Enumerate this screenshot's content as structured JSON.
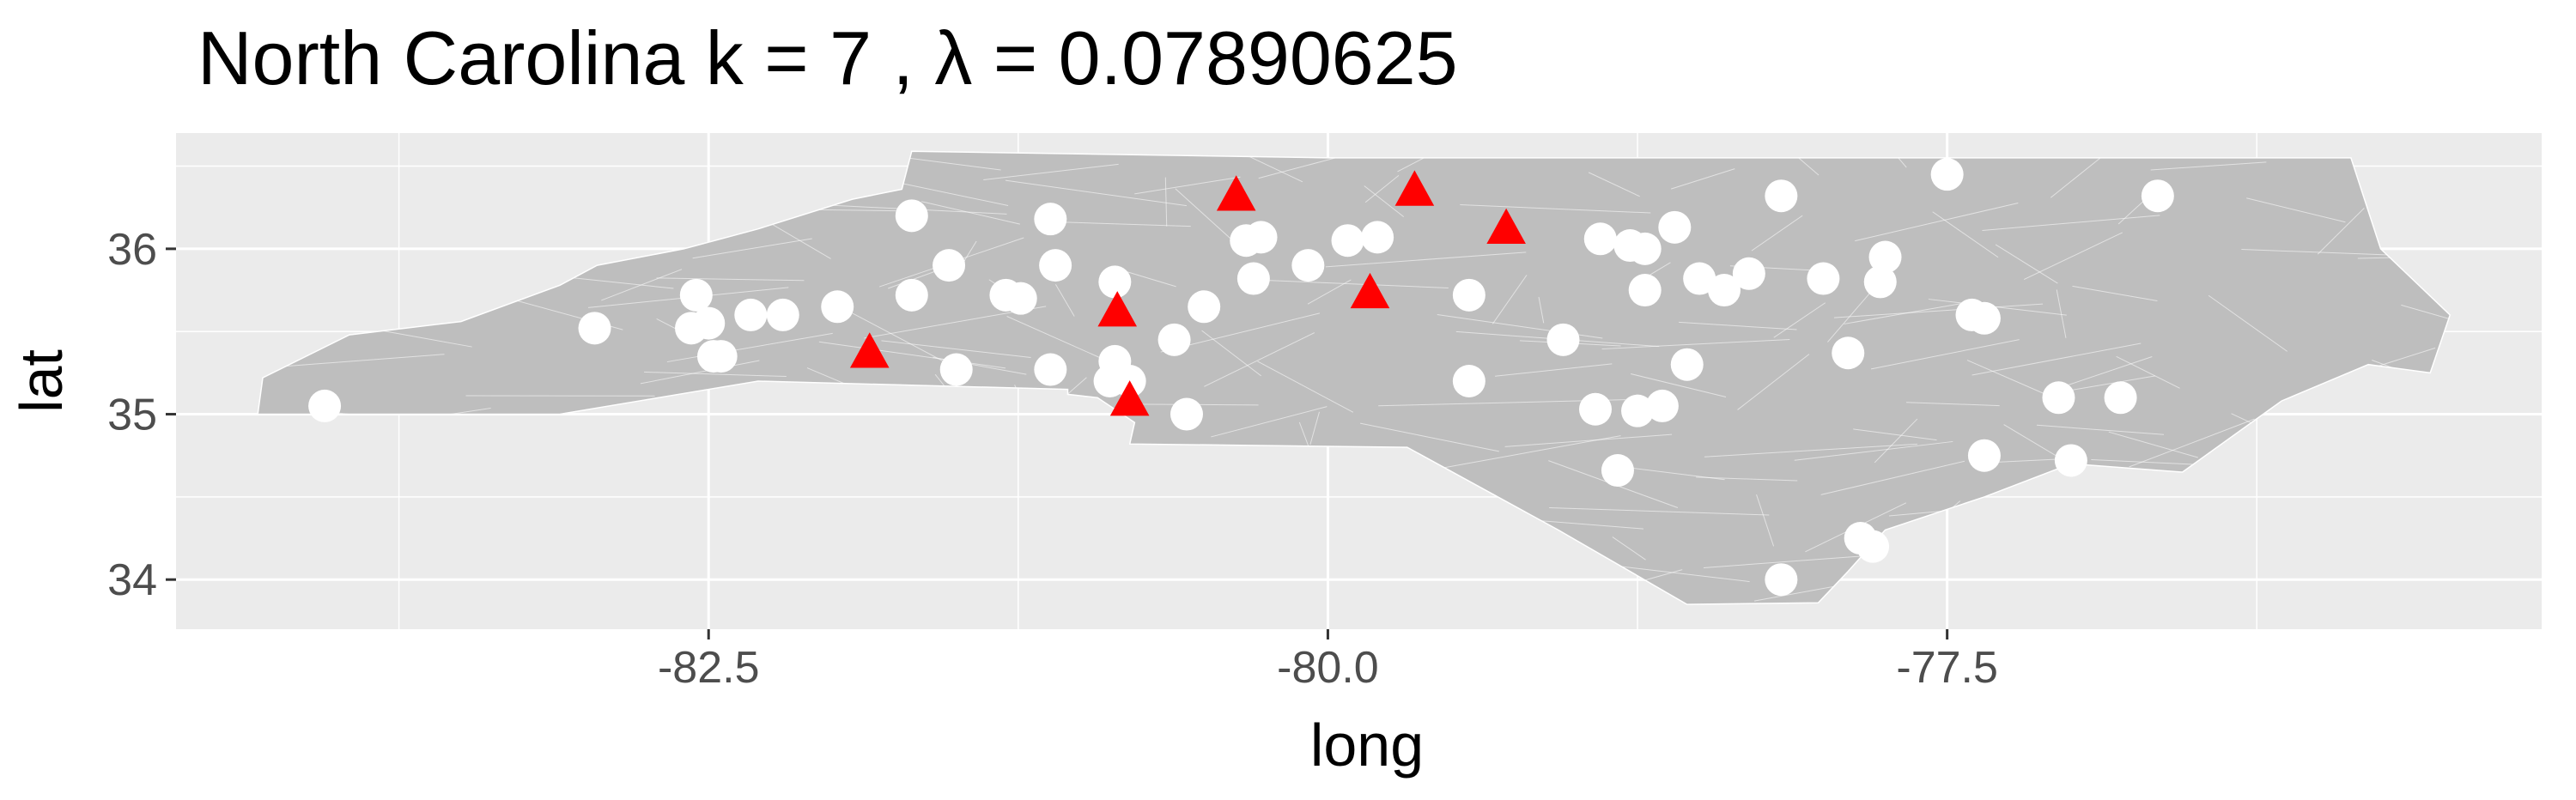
{
  "chart_data": {
    "type": "scatter",
    "title": "North Carolina  k =  7 ,  λ  =  0.07890625",
    "xlabel": "long",
    "ylabel": "lat",
    "xlim": [
      -84.65,
      -75.1
    ],
    "ylim": [
      33.7,
      36.7
    ],
    "x_ticks": [
      -82.5,
      -80.0,
      -77.5
    ],
    "x_tick_labels": [
      "-82.5",
      "-80.0",
      "-77.5"
    ],
    "y_ticks": [
      34,
      35,
      36
    ],
    "y_tick_labels": [
      "34",
      "35",
      "36"
    ],
    "grid": true,
    "panel_background": "#ebebeb",
    "map_fill": "#bebebe",
    "map_border_color": "#ffffff",
    "series": [
      {
        "marker": "circle",
        "color": "#ffffff",
        "points": [
          [
            -84.05,
            35.05
          ],
          [
            -82.96,
            35.52
          ],
          [
            -82.55,
            35.72
          ],
          [
            -82.57,
            35.52
          ],
          [
            -82.5,
            35.55
          ],
          [
            -82.33,
            35.6
          ],
          [
            -82.2,
            35.6
          ],
          [
            -82.48,
            35.35
          ],
          [
            -82.45,
            35.35
          ],
          [
            -81.98,
            35.65
          ],
          [
            -81.68,
            36.2
          ],
          [
            -81.68,
            35.72
          ],
          [
            -81.53,
            35.9
          ],
          [
            -81.5,
            35.27
          ],
          [
            -81.3,
            35.72
          ],
          [
            -81.24,
            35.7
          ],
          [
            -81.12,
            36.18
          ],
          [
            -81.1,
            35.9
          ],
          [
            -81.12,
            35.27
          ],
          [
            -80.86,
            35.8
          ],
          [
            -80.86,
            35.32
          ],
          [
            -80.88,
            35.2
          ],
          [
            -80.8,
            35.2
          ],
          [
            -80.62,
            35.45
          ],
          [
            -80.57,
            35.0
          ],
          [
            -80.5,
            35.65
          ],
          [
            -80.33,
            36.05
          ],
          [
            -80.27,
            36.07
          ],
          [
            -80.3,
            35.82
          ],
          [
            -80.08,
            35.9
          ],
          [
            -79.92,
            36.05
          ],
          [
            -79.8,
            36.07
          ],
          [
            -79.43,
            35.72
          ],
          [
            -79.43,
            35.2
          ],
          [
            -79.05,
            35.45
          ],
          [
            -78.9,
            36.06
          ],
          [
            -78.78,
            36.02
          ],
          [
            -78.72,
            36.0
          ],
          [
            -78.6,
            36.13
          ],
          [
            -78.83,
            34.66
          ],
          [
            -78.72,
            35.75
          ],
          [
            -78.5,
            35.82
          ],
          [
            -78.4,
            35.75
          ],
          [
            -78.3,
            35.85
          ],
          [
            -78.55,
            35.3
          ],
          [
            -78.0,
            35.82
          ],
          [
            -77.75,
            35.95
          ],
          [
            -77.77,
            35.8
          ],
          [
            -77.9,
            35.37
          ],
          [
            -77.4,
            35.6
          ],
          [
            -77.35,
            35.58
          ],
          [
            -78.17,
            36.32
          ],
          [
            -77.5,
            36.45
          ],
          [
            -76.65,
            36.32
          ],
          [
            -78.65,
            35.05
          ],
          [
            -78.75,
            35.02
          ],
          [
            -78.92,
            35.03
          ],
          [
            -77.85,
            34.25
          ],
          [
            -77.8,
            34.2
          ],
          [
            -76.8,
            35.1
          ],
          [
            -77.05,
            35.1
          ],
          [
            -77.35,
            34.75
          ],
          [
            -77.0,
            34.72
          ],
          [
            -78.17,
            34.0
          ]
        ]
      },
      {
        "marker": "triangle",
        "color": "#ff0000",
        "points": [
          [
            -81.85,
            35.37
          ],
          [
            -80.85,
            35.62
          ],
          [
            -80.8,
            35.08
          ],
          [
            -80.37,
            36.32
          ],
          [
            -79.65,
            36.35
          ],
          [
            -79.83,
            35.73
          ],
          [
            -79.28,
            36.12
          ]
        ]
      }
    ]
  }
}
